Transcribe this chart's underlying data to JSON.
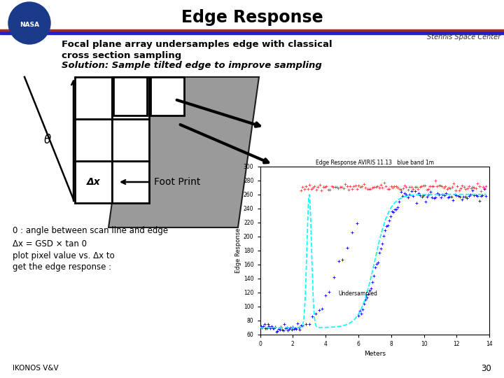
{
  "title": "Edge Response",
  "subtitle_line1": "Focal plane array undersamples edge with classical",
  "subtitle_line2": "cross section sampling",
  "subtitle_line3": "Solution: Sample tilted edge to improve sampling",
  "affiliation": "Stennis Space Center",
  "slide_number": "30",
  "footer": "IKONOS V&V",
  "header_bar_blue": "#2222CC",
  "header_bar_red": "#993333",
  "bg_color": "#ffffff",
  "text_color": "#000000",
  "formula_line1": "0 : angle between scan line and edge",
  "formula_line2": "Δx = GSD × tan 0",
  "formula_line3": "plot pixel value vs. Δx to",
  "formula_line4": "get the edge response :",
  "graph_title": "Edge Response AVIRIS 11.13   blue band 1m",
  "graph_xlabel": "Meters",
  "graph_ylabel": "Edge Response",
  "graph_xlim": [
    0,
    14
  ],
  "graph_ylim": [
    60,
    300
  ],
  "graph_xticks": [
    0,
    2,
    4,
    6,
    8,
    10,
    12,
    14
  ],
  "undersampled_label": "Undersampled",
  "foot_print_label": "Foot Print",
  "theta_label": "θ",
  "delta_x_label": "Δx",
  "gray_color": "#888888",
  "cell_color": "#ffffff"
}
